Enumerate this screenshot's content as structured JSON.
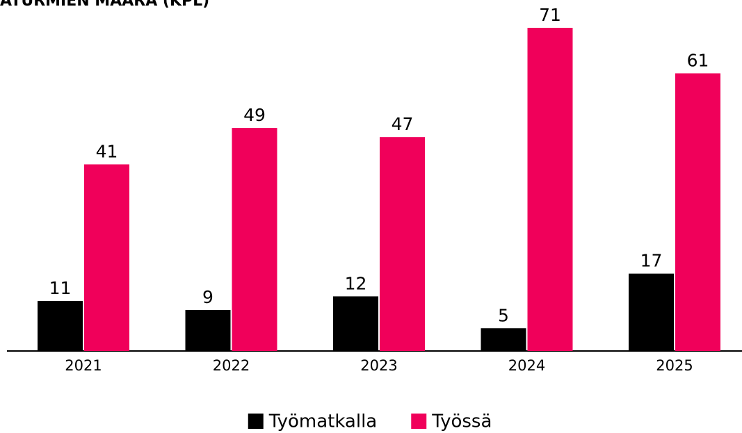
{
  "chart_data": {
    "type": "bar",
    "title": "ATURMIEN MÄÄRÄ (KPL)",
    "categories": [
      "2021",
      "2022",
      "2023",
      "2024",
      "2025"
    ],
    "series": [
      {
        "name": "Työmatkalla",
        "color": "#000000",
        "values": [
          11,
          9,
          12,
          5,
          17
        ]
      },
      {
        "name": "Työssä",
        "color": "#f0005a",
        "values": [
          41,
          49,
          47,
          71,
          61
        ]
      }
    ],
    "legend": "bottom"
  }
}
